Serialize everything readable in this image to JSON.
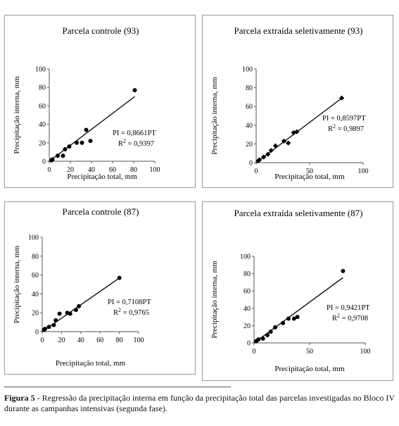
{
  "chart_data": [
    {
      "type": "scatter",
      "title": "Parcela controle (93)",
      "xlabel": "Precipitação total, mm",
      "ylabel": "Precipitação interna, mm",
      "xlim": [
        0,
        100
      ],
      "ylim": [
        0,
        100
      ],
      "xticks": [
        "0",
        "20",
        "40",
        "60",
        "80",
        "100"
      ],
      "yticks": [
        "0",
        "20",
        "40",
        "60",
        "80",
        "100"
      ],
      "marker": "circle",
      "points": [
        {
          "x": 2,
          "y": 1
        },
        {
          "x": 3,
          "y": 2
        },
        {
          "x": 8,
          "y": 6
        },
        {
          "x": 13,
          "y": 6
        },
        {
          "x": 15,
          "y": 13
        },
        {
          "x": 19,
          "y": 16
        },
        {
          "x": 26,
          "y": 20
        },
        {
          "x": 31,
          "y": 20
        },
        {
          "x": 35,
          "y": 34
        },
        {
          "x": 39,
          "y": 22
        },
        {
          "x": 81,
          "y": 77
        }
      ],
      "slope": 0.8661,
      "equation": "PI = 0,8661PT",
      "r2": "0,9397",
      "r2_prefix": "R",
      "r2_exp": "2",
      "r2_sep": " = "
    },
    {
      "type": "scatter",
      "title": "Parcela extraída seletivamente (93)",
      "xlabel": "Precipitação total, mm",
      "ylabel": "Precipitação interna, mm",
      "xlim": [
        0,
        100
      ],
      "ylim": [
        0,
        100
      ],
      "xticks": [
        "0",
        "50",
        "100"
      ],
      "yticks": [
        "0",
        "20",
        "40",
        "60",
        "80",
        "100"
      ],
      "marker": "diamond",
      "points": [
        {
          "x": 2,
          "y": 2
        },
        {
          "x": 3,
          "y": 3
        },
        {
          "x": 7,
          "y": 6
        },
        {
          "x": 11,
          "y": 9
        },
        {
          "x": 14,
          "y": 13
        },
        {
          "x": 18,
          "y": 18
        },
        {
          "x": 26,
          "y": 23
        },
        {
          "x": 30,
          "y": 21
        },
        {
          "x": 35,
          "y": 32
        },
        {
          "x": 38,
          "y": 33
        },
        {
          "x": 80,
          "y": 69
        }
      ],
      "slope": 0.8597,
      "equation": "PI = 0,8597PT",
      "r2": "0,9897",
      "r2_prefix": "R",
      "r2_exp": "2",
      "r2_sep": " = "
    },
    {
      "type": "scatter",
      "title": "Parcela controle (87)",
      "xlabel": "Precipitação total, mm",
      "ylabel": "Precipitação interna, mm",
      "xlim": [
        0,
        100
      ],
      "ylim": [
        0,
        100
      ],
      "xticks": [
        "0",
        "20",
        "40",
        "60",
        "80",
        "100"
      ],
      "yticks": [
        "0",
        "20",
        "40",
        "60",
        "80",
        "100"
      ],
      "marker": "circle",
      "points": [
        {
          "x": 2,
          "y": 2
        },
        {
          "x": 3,
          "y": 3
        },
        {
          "x": 7,
          "y": 5
        },
        {
          "x": 12,
          "y": 7
        },
        {
          "x": 14,
          "y": 12
        },
        {
          "x": 18,
          "y": 19
        },
        {
          "x": 26,
          "y": 20
        },
        {
          "x": 29,
          "y": 19
        },
        {
          "x": 35,
          "y": 23
        },
        {
          "x": 38,
          "y": 27
        },
        {
          "x": 80,
          "y": 57
        }
      ],
      "slope": 0.7108,
      "equation": "PI = 0,7108PT",
      "r2": "0,9765",
      "r2_prefix": "R",
      "r2_exp": "2",
      "r2_sep": " = "
    },
    {
      "type": "scatter",
      "title": "Parcela extraída seletivamente (87)",
      "xlabel": "Precipitação total, mm",
      "ylabel": "Precipitação interna, mm",
      "xlim": [
        0,
        100
      ],
      "ylim": [
        0,
        100
      ],
      "xticks": [
        "0",
        "50",
        "100"
      ],
      "yticks": [
        "0",
        "20",
        "40",
        "60",
        "80",
        "100"
      ],
      "marker": "circle",
      "points": [
        {
          "x": 2,
          "y": 2
        },
        {
          "x": 4,
          "y": 4
        },
        {
          "x": 8,
          "y": 5
        },
        {
          "x": 12,
          "y": 9
        },
        {
          "x": 15,
          "y": 13
        },
        {
          "x": 19,
          "y": 18
        },
        {
          "x": 26,
          "y": 23
        },
        {
          "x": 31,
          "y": 28
        },
        {
          "x": 36,
          "y": 28
        },
        {
          "x": 39,
          "y": 30
        },
        {
          "x": 80,
          "y": 83
        }
      ],
      "slope": 0.9421,
      "equation": "PI = 0,9421PT",
      "r2": "0,9708",
      "r2_prefix": "R",
      "r2_exp": "2",
      "r2_sep": " = "
    }
  ],
  "caption": {
    "label": "Figura 5 -",
    "text": " Regressão da precipitação interna em função da precipitação total das parcelas investigadas no Bloco IV durante as campanhas intensivas (segunda fase)."
  }
}
